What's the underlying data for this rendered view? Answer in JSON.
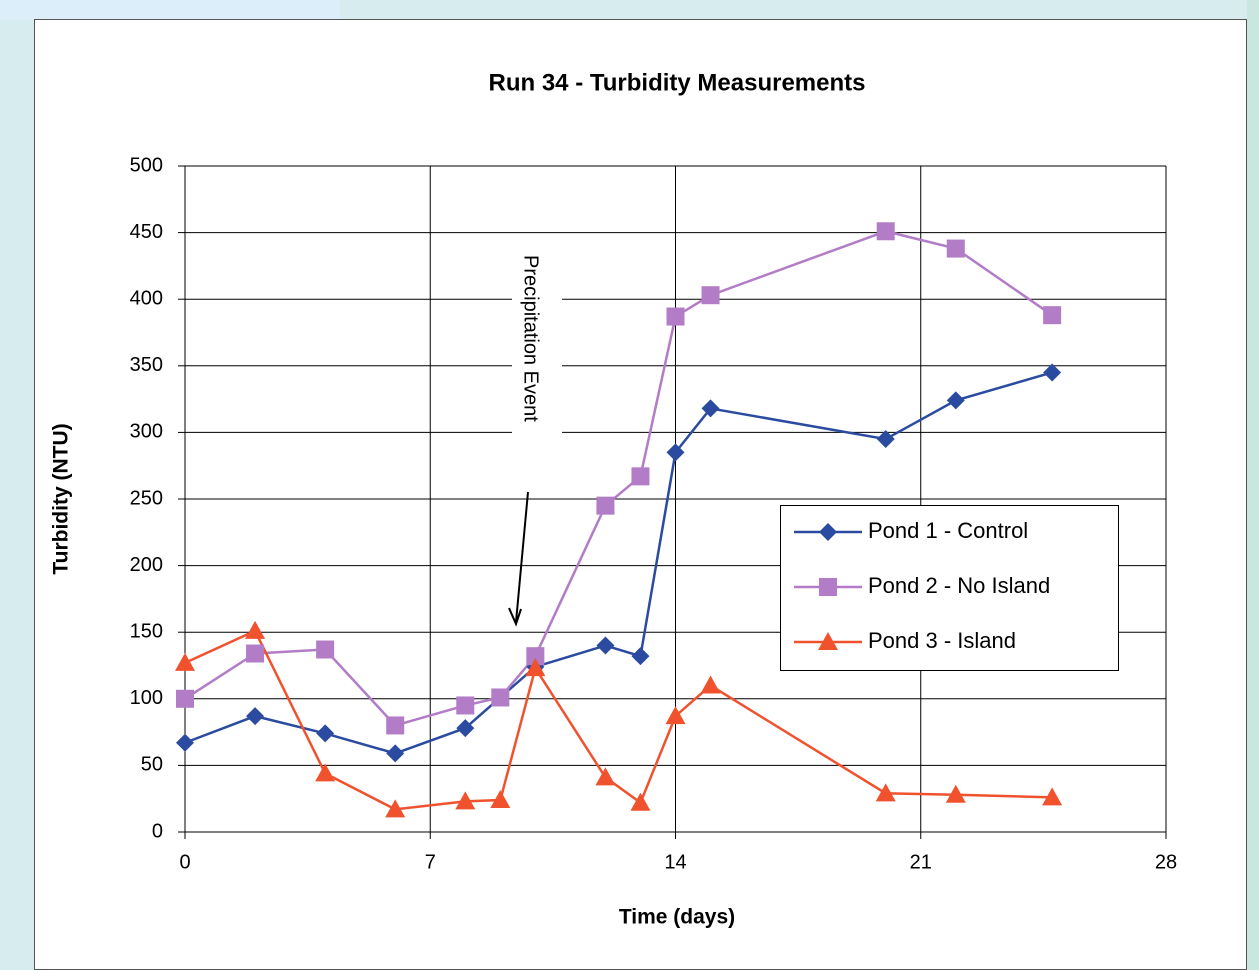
{
  "chart_data": {
    "type": "line",
    "title": "Run 34 - Turbidity Measurements",
    "x_label": "Time (days)",
    "y_label": "Turbidity (NTU)",
    "annotation": "Precipitation Event",
    "x": [
      0,
      2,
      4,
      6,
      8,
      9,
      10,
      12,
      13,
      14,
      15,
      20,
      22,
      24.75
    ],
    "series": [
      {
        "name": "Pond 1 - Control",
        "color": "#2a4ba0",
        "marker": "diamond",
        "values": [
          67,
          87,
          74,
          59,
          78,
          101,
          124,
          140,
          132,
          285,
          318,
          295,
          324,
          345
        ]
      },
      {
        "name": "Pond 2 - No Island",
        "color": "#b27cc6",
        "marker": "square",
        "values": [
          100,
          134,
          137,
          80,
          95,
          101,
          132,
          245,
          267,
          387,
          403,
          451,
          438,
          388
        ]
      },
      {
        "name": "Pond 3 - Island",
        "color": "#f0522e",
        "marker": "triangle",
        "values": [
          127,
          151,
          44,
          17,
          23,
          24,
          123,
          41,
          22,
          87,
          110,
          29,
          28,
          26
        ]
      }
    ],
    "xlim": [
      0,
      28
    ],
    "xticks": [
      0,
      7,
      14,
      21,
      28
    ],
    "ylim": [
      0,
      500
    ],
    "yticks": [
      0,
      50,
      100,
      150,
      200,
      250,
      300,
      350,
      400,
      450,
      500
    ],
    "grid": true
  }
}
